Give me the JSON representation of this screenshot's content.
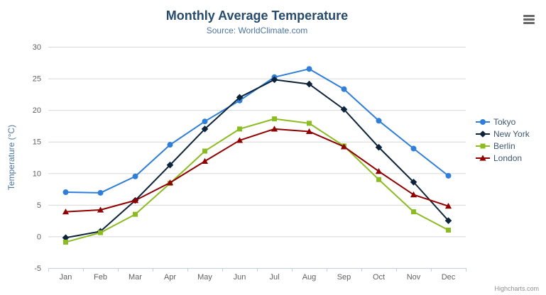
{
  "chart_data": {
    "type": "line",
    "title": "Monthly Average Temperature",
    "subtitle": "Source: WorldClimate.com",
    "xlabel": "",
    "ylabel": "Temperature (°C)",
    "ylim": [
      -5,
      30
    ],
    "ytick_step": 5,
    "grid": true,
    "legend_position": "right",
    "categories": [
      "Jan",
      "Feb",
      "Mar",
      "Apr",
      "May",
      "Jun",
      "Jul",
      "Aug",
      "Sep",
      "Oct",
      "Nov",
      "Dec"
    ],
    "series": [
      {
        "name": "Tokyo",
        "color": "#2f7ed8",
        "marker": "circle",
        "values": [
          7.0,
          6.9,
          9.5,
          14.5,
          18.2,
          21.5,
          25.2,
          26.5,
          23.3,
          18.3,
          13.9,
          9.6
        ]
      },
      {
        "name": "New York",
        "color": "#0d233a",
        "marker": "diamond",
        "values": [
          -0.2,
          0.8,
          5.7,
          11.3,
          17.0,
          22.0,
          24.8,
          24.1,
          20.1,
          14.1,
          8.6,
          2.5
        ]
      },
      {
        "name": "Berlin",
        "color": "#8bbc21",
        "marker": "square",
        "values": [
          -0.9,
          0.6,
          3.5,
          8.4,
          13.5,
          17.0,
          18.6,
          17.9,
          14.3,
          9.0,
          3.9,
          1.0
        ]
      },
      {
        "name": "London",
        "color": "#910000",
        "marker": "triangle",
        "values": [
          3.9,
          4.2,
          5.7,
          8.5,
          11.9,
          15.2,
          17.0,
          16.6,
          14.2,
          10.3,
          6.6,
          4.8
        ]
      }
    ],
    "style": {
      "grid_color": "#d8d8d8",
      "axis_line_color": "#c0d0e0",
      "axis_label_color": "#606060"
    }
  },
  "icons": {
    "context_menu": "hamburger-menu"
  },
  "credits": {
    "label": "Highcharts.com"
  }
}
